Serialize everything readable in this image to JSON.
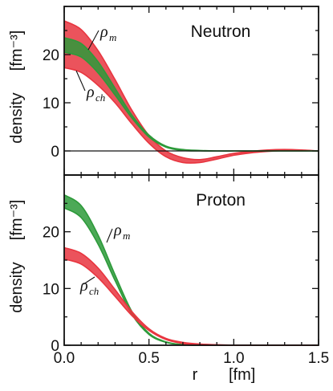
{
  "chart_data": {
    "type": "area",
    "shared_x": {
      "label": "r",
      "unit": "[fm]",
      "range": [
        0.0,
        1.5
      ],
      "ticks": [
        0.0,
        0.5,
        1.0,
        1.5
      ],
      "tick_labels": [
        "0.0",
        "0.5",
        "1.0",
        "1.5"
      ]
    },
    "colors": {
      "rho_ch": "#e8353f",
      "rho_m": "#2d9a3a"
    },
    "panels": [
      {
        "title": "Neutron",
        "ylabel": "density",
        "yunit": "[fm⁻³]",
        "ylim": [
          -5,
          30
        ],
        "yticks": [
          0,
          10,
          20
        ],
        "ytick_labels": [
          "0",
          "10",
          "20"
        ],
        "zero_line": true,
        "series": [
          {
            "key": "rho_ch",
            "name": "ρch",
            "label_main": "ρ",
            "label_sub": "ch",
            "x": [
              0.0,
              0.1,
              0.2,
              0.3,
              0.4,
              0.5,
              0.6,
              0.7,
              0.8,
              0.9,
              1.0,
              1.1,
              1.2,
              1.3,
              1.4,
              1.5
            ],
            "lower": [
              17.3,
              16.3,
              13.6,
              10.0,
              5.6,
              1.6,
              -1.2,
              -2.4,
              -2.4,
              -1.7,
              -0.9,
              -0.4,
              -0.1,
              0.1,
              0.1,
              0.0
            ],
            "upper": [
              27.0,
              25.2,
              20.8,
              14.8,
              8.4,
              3.2,
              0.0,
              -1.4,
              -1.8,
              -1.2,
              -0.5,
              -0.1,
              0.2,
              0.3,
              0.2,
              0.0
            ]
          },
          {
            "key": "rho_m",
            "name": "ρm",
            "label_main": "ρ",
            "label_sub": "m",
            "x": [
              0.0,
              0.1,
              0.2,
              0.3,
              0.4,
              0.5,
              0.6,
              0.7,
              0.8,
              0.9,
              1.0,
              1.1,
              1.2,
              1.3,
              1.4,
              1.5
            ],
            "lower": [
              20.5,
              19.5,
              16.2,
              11.6,
              6.8,
              2.9,
              0.8,
              0.1,
              0.0,
              0.0,
              0.0,
              0.0,
              0.0,
              0.0,
              0.0,
              0.0
            ],
            "upper": [
              23.5,
              22.3,
              18.5,
              13.0,
              7.4,
              3.3,
              1.0,
              0.3,
              0.1,
              0.0,
              0.0,
              0.0,
              0.0,
              0.0,
              0.0,
              0.0
            ]
          }
        ]
      },
      {
        "title": "Proton",
        "ylabel": "density",
        "yunit": "[fm⁻³]",
        "ylim": [
          0,
          30
        ],
        "yticks": [
          0,
          10,
          20
        ],
        "ytick_labels": [
          "0",
          "10",
          "20"
        ],
        "zero_line": false,
        "series": [
          {
            "key": "rho_m",
            "name": "ρm",
            "label_main": "ρ",
            "label_sub": "m",
            "x": [
              0.0,
              0.1,
              0.2,
              0.3,
              0.4,
              0.5,
              0.6,
              0.7,
              0.8,
              0.9,
              1.0,
              1.1,
              1.2,
              1.3,
              1.4,
              1.5
            ],
            "lower": [
              24.2,
              22.5,
              17.8,
              11.4,
              5.4,
              1.9,
              0.5,
              0.1,
              0.0,
              0.0,
              0.0,
              0.0,
              0.0,
              0.0,
              0.0,
              0.0
            ],
            "upper": [
              26.5,
              24.6,
              19.4,
              12.4,
              5.9,
              2.1,
              0.6,
              0.1,
              0.0,
              0.0,
              0.0,
              0.0,
              0.0,
              0.0,
              0.0,
              0.0
            ]
          },
          {
            "key": "rho_ch",
            "name": "ρch",
            "label_main": "ρ",
            "label_sub": "ch",
            "x": [
              0.0,
              0.1,
              0.2,
              0.3,
              0.4,
              0.5,
              0.6,
              0.7,
              0.8,
              0.9,
              1.0,
              1.1,
              1.2,
              1.3,
              1.4,
              1.5
            ],
            "lower": [
              15.2,
              14.3,
              11.9,
              8.6,
              5.2,
              2.6,
              1.0,
              0.3,
              0.0,
              0.0,
              0.0,
              0.0,
              0.0,
              0.0,
              0.0,
              0.0
            ],
            "upper": [
              17.2,
              16.2,
              13.6,
              9.8,
              5.9,
              2.9,
              1.2,
              0.5,
              0.2,
              0.1,
              0.0,
              0.0,
              0.0,
              0.0,
              0.0,
              0.0
            ]
          }
        ]
      }
    ]
  }
}
